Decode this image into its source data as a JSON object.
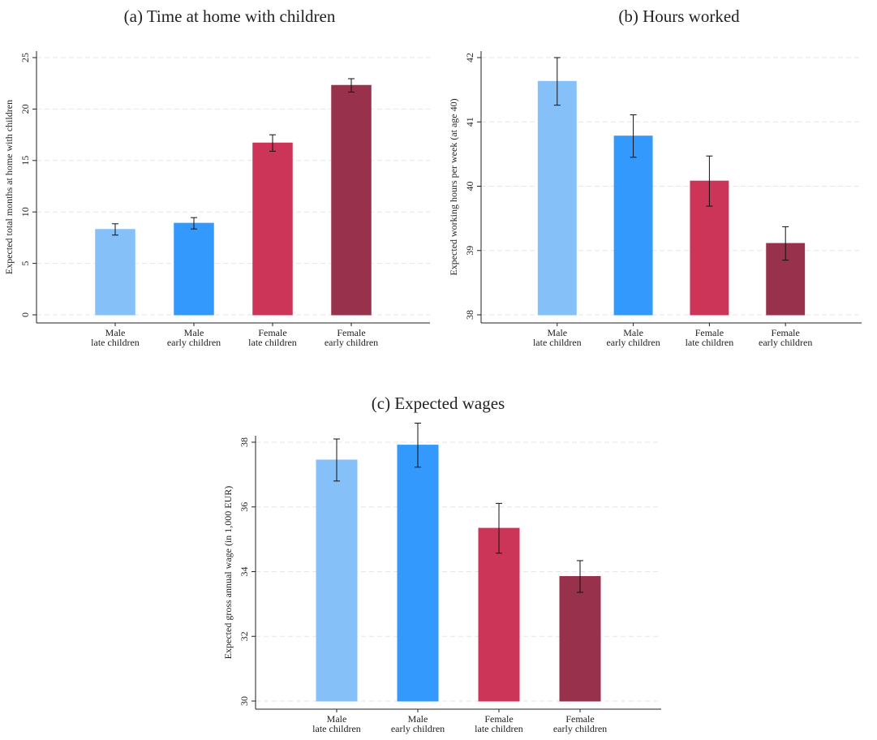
{
  "chart_data": [
    {
      "type": "bar",
      "title": "(a) Time at home with children",
      "y_label": "Expected total months at home with children",
      "categories": [
        "Male\nlate children",
        "Male\nearly children",
        "Female\nlate children",
        "Female\nearly children"
      ],
      "values": [
        8.3,
        8.9,
        16.7,
        22.3
      ],
      "errors": [
        0.55,
        0.55,
        0.8,
        0.65
      ],
      "colors": [
        "#85c0f9",
        "#3399fc",
        "#cc3558",
        "#98324c"
      ],
      "ylim": [
        0,
        25
      ],
      "yticks": [
        0,
        5,
        10,
        15,
        20,
        25
      ],
      "grid": true
    },
    {
      "type": "bar",
      "title": "(b) Hours worked",
      "y_label": "Expected working hours per week (at age 40)",
      "categories": [
        "Male\nlate children",
        "Male\nearly children",
        "Female\nlate children",
        "Female\nearly children"
      ],
      "values": [
        41.63,
        40.78,
        40.08,
        39.11
      ],
      "errors": [
        0.37,
        0.33,
        0.39,
        0.26
      ],
      "colors": [
        "#85c0f9",
        "#3399fc",
        "#cc3558",
        "#98324c"
      ],
      "ylim": [
        38,
        42
      ],
      "yticks": [
        38,
        39,
        40,
        41,
        42
      ],
      "grid": true
    },
    {
      "type": "bar",
      "title": "(c) Expected wages",
      "y_label": "Expected gross annual wage (in 1,000 EUR)",
      "categories": [
        "Male\nlate children",
        "Male\nearly children",
        "Female\nlate children",
        "Female\nearly children"
      ],
      "values": [
        37.45,
        37.91,
        35.34,
        33.85
      ],
      "errors": [
        0.65,
        0.68,
        0.77,
        0.49
      ],
      "colors": [
        "#85c0f9",
        "#3399fc",
        "#cc3558",
        "#98324c"
      ],
      "ylim": [
        30,
        38
      ],
      "yticks": [
        30,
        32,
        34,
        36,
        38
      ],
      "grid": true
    }
  ]
}
